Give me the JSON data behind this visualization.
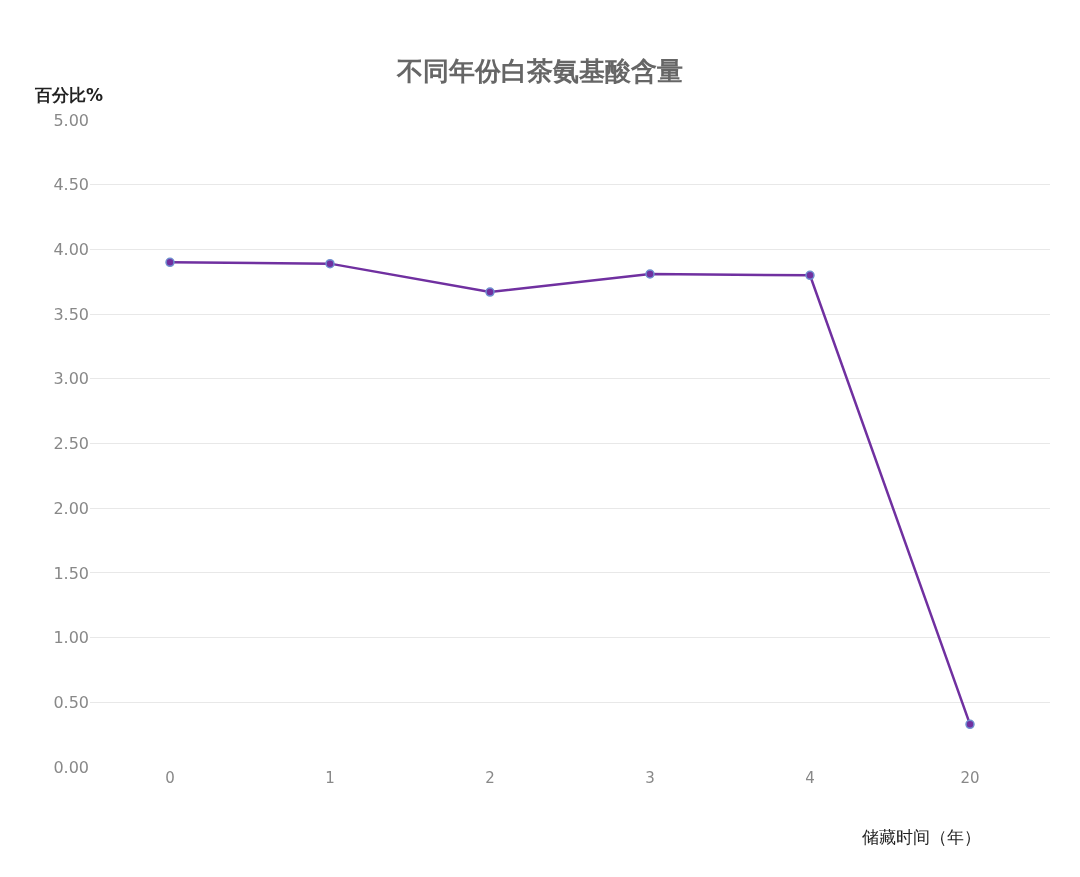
{
  "chart_data": {
    "type": "line",
    "title": "不同年份白茶氨基酸含量",
    "ylabel": "百分比%",
    "xlabel": "储藏时间（年）",
    "categories": [
      "0",
      "1",
      "2",
      "3",
      "4",
      "20"
    ],
    "series": [
      {
        "color": "#7030a0",
        "values": [
          3.9,
          3.89,
          3.67,
          3.81,
          3.8,
          0.33
        ]
      }
    ],
    "ylim": [
      0,
      5
    ],
    "yticks": [
      {
        "value": 0,
        "label": "0.00"
      },
      {
        "value": 0.5,
        "label": "0.50"
      },
      {
        "value": 1,
        "label": "1.00"
      },
      {
        "value": 1.5,
        "label": "1.50"
      },
      {
        "value": 2,
        "label": "2.00"
      },
      {
        "value": 2.5,
        "label": "2.50"
      },
      {
        "value": 3,
        "label": "3.00"
      },
      {
        "value": 3.5,
        "label": "3.50"
      },
      {
        "value": 4,
        "label": "4.00"
      },
      {
        "value": 4.5,
        "label": "4.50"
      },
      {
        "value": 5,
        "label": "5.00"
      }
    ],
    "grid": "y",
    "legend": false,
    "marker": "circle",
    "line_style": "solid"
  }
}
